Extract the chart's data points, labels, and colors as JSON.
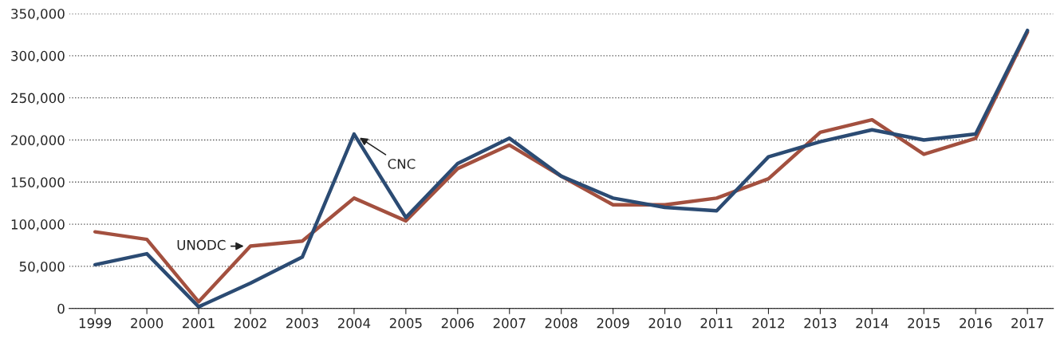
{
  "chart_data": {
    "type": "line",
    "categories": [
      "1999",
      "2000",
      "2001",
      "2002",
      "2003",
      "2004",
      "2005",
      "2006",
      "2007",
      "2008",
      "2009",
      "2010",
      "2011",
      "2012",
      "2013",
      "2014",
      "2015",
      "2016",
      "2017"
    ],
    "series": [
      {
        "name": "UNODC",
        "color": "#a3503f",
        "values": [
          91000,
          82000,
          8000,
          74000,
          80000,
          131000,
          104000,
          166000,
          194000,
          157000,
          123000,
          123000,
          131000,
          154000,
          209000,
          224000,
          183000,
          202000,
          328000
        ]
      },
      {
        "name": "CNC",
        "color": "#2b4b73",
        "values": [
          52000,
          65000,
          2000,
          30000,
          61000,
          207000,
          108000,
          172000,
          202000,
          157000,
          131000,
          120000,
          116000,
          180000,
          198000,
          212000,
          200000,
          207000,
          330000
        ]
      }
    ],
    "ylim": [
      0,
      350000
    ],
    "yticks": [
      0,
      {
        "value": 50000,
        "label": "50,000"
      },
      {
        "value": 100000,
        "label": "100,000"
      },
      {
        "value": 150000,
        "label": "150,000"
      },
      {
        "value": 200000,
        "label": "200,000"
      },
      {
        "value": 250000,
        "label": "250,000"
      },
      {
        "value": 300000,
        "label": "300,000"
      },
      {
        "value": 350000,
        "label": "350,000"
      }
    ],
    "grid": "y",
    "legend": false,
    "line_style": "solid",
    "marker": "none"
  }
}
